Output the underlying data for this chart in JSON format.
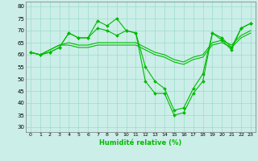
{
  "title": "",
  "xlabel": "Humidité relative (%)",
  "ylabel": "",
  "xlim": [
    -0.5,
    23.5
  ],
  "ylim": [
    28,
    82
  ],
  "yticks": [
    30,
    35,
    40,
    45,
    50,
    55,
    60,
    65,
    70,
    75,
    80
  ],
  "xticks": [
    0,
    1,
    2,
    3,
    4,
    5,
    6,
    7,
    8,
    9,
    10,
    11,
    12,
    13,
    14,
    15,
    16,
    17,
    18,
    19,
    20,
    21,
    22,
    23
  ],
  "bg_color": "#cceee8",
  "grid_color": "#99ddcc",
  "line_color": "#00bb00",
  "line1": [
    61,
    60,
    61,
    63,
    69,
    67,
    67,
    74,
    72,
    75,
    70,
    69,
    49,
    44,
    44,
    35,
    36,
    44,
    49,
    69,
    67,
    63,
    71,
    73
  ],
  "line2": [
    61,
    60,
    61,
    63,
    69,
    67,
    67,
    71,
    70,
    68,
    70,
    69,
    55,
    49,
    46,
    37,
    38,
    46,
    52,
    69,
    66,
    62,
    71,
    73
  ],
  "line3": [
    61,
    60,
    62,
    64,
    65,
    64,
    64,
    65,
    65,
    65,
    65,
    65,
    63,
    61,
    60,
    58,
    57,
    59,
    60,
    65,
    66,
    64,
    68,
    70
  ],
  "line4": [
    61,
    60,
    62,
    64,
    64,
    63,
    63,
    64,
    64,
    64,
    64,
    64,
    62,
    60,
    59,
    57,
    56,
    58,
    59,
    64,
    65,
    63,
    67,
    69
  ]
}
